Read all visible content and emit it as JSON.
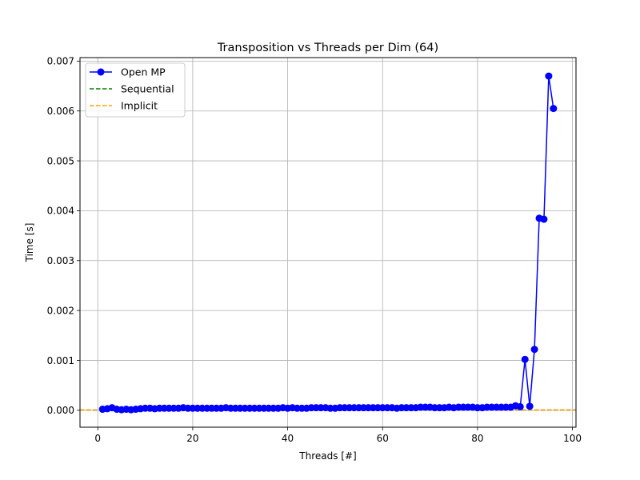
{
  "chart_data": {
    "type": "line",
    "title": "Transposition vs Threads per Dim (64)",
    "xlabel": "Threads [#]",
    "ylabel": "Time [s]",
    "xlim": [
      -3.75,
      100.75
    ],
    "ylim": [
      -0.00034,
      0.00707
    ],
    "x_ticks": [
      0,
      20,
      40,
      60,
      80,
      100
    ],
    "x_tick_labels": [
      "0",
      "20",
      "40",
      "60",
      "80",
      "100"
    ],
    "y_ticks": [
      0,
      0.001,
      0.002,
      0.003,
      0.004,
      0.005,
      0.006,
      0.007
    ],
    "y_tick_labels": [
      "0.000",
      "0.001",
      "0.002",
      "0.003",
      "0.004",
      "0.005",
      "0.006",
      "0.007"
    ],
    "grid": true,
    "legend_position": "upper-left",
    "series": [
      {
        "name": "Open MP",
        "style": "marker-line",
        "color": "#0000ff",
        "x": [
          1,
          2,
          3,
          4,
          5,
          6,
          7,
          8,
          9,
          10,
          11,
          12,
          13,
          14,
          15,
          16,
          17,
          18,
          19,
          20,
          21,
          22,
          23,
          24,
          25,
          26,
          27,
          28,
          29,
          30,
          31,
          32,
          33,
          34,
          35,
          36,
          37,
          38,
          39,
          40,
          41,
          42,
          43,
          44,
          45,
          46,
          47,
          48,
          49,
          50,
          51,
          52,
          53,
          54,
          55,
          56,
          57,
          58,
          59,
          60,
          61,
          62,
          63,
          64,
          65,
          66,
          67,
          68,
          69,
          70,
          71,
          72,
          73,
          74,
          75,
          76,
          77,
          78,
          79,
          80,
          81,
          82,
          83,
          84,
          85,
          86,
          87,
          88,
          89,
          90,
          91,
          92,
          93,
          94,
          95,
          96
        ],
        "y": [
          2e-05,
          3e-05,
          5e-05,
          2e-05,
          1e-05,
          2e-05,
          1e-05,
          2e-05,
          3e-05,
          4e-05,
          4e-05,
          3e-05,
          4e-05,
          4e-05,
          4e-05,
          4e-05,
          4e-05,
          5e-05,
          4e-05,
          4e-05,
          4e-05,
          4e-05,
          4e-05,
          4e-05,
          4e-05,
          4e-05,
          5e-05,
          4e-05,
          4e-05,
          4e-05,
          4e-05,
          4e-05,
          4e-05,
          4e-05,
          4e-05,
          4e-05,
          4e-05,
          4e-05,
          5e-05,
          4e-05,
          5e-05,
          4e-05,
          4e-05,
          4e-05,
          5e-05,
          5e-05,
          5e-05,
          5e-05,
          4e-05,
          4e-05,
          5e-05,
          5e-05,
          5e-05,
          5e-05,
          5e-05,
          5e-05,
          5e-05,
          5e-05,
          5e-05,
          5e-05,
          5e-05,
          5e-05,
          4e-05,
          5e-05,
          5e-05,
          5e-05,
          5e-05,
          6e-05,
          6e-05,
          6e-05,
          5e-05,
          5e-05,
          5e-05,
          6e-05,
          5e-05,
          6e-05,
          6e-05,
          6e-05,
          6e-05,
          5e-05,
          5e-05,
          6e-05,
          6e-05,
          6e-05,
          6e-05,
          6e-05,
          6e-05,
          9e-05,
          7e-05,
          0.00102,
          8e-05,
          0.00122,
          0.00385,
          0.00383,
          0.0067,
          0.00605
        ]
      },
      {
        "name": "Sequential",
        "style": "dashed",
        "color": "#008000",
        "value": 5e-06
      },
      {
        "name": "Implicit",
        "style": "dashed",
        "color": "#ffa500",
        "value": 5e-06
      }
    ]
  }
}
